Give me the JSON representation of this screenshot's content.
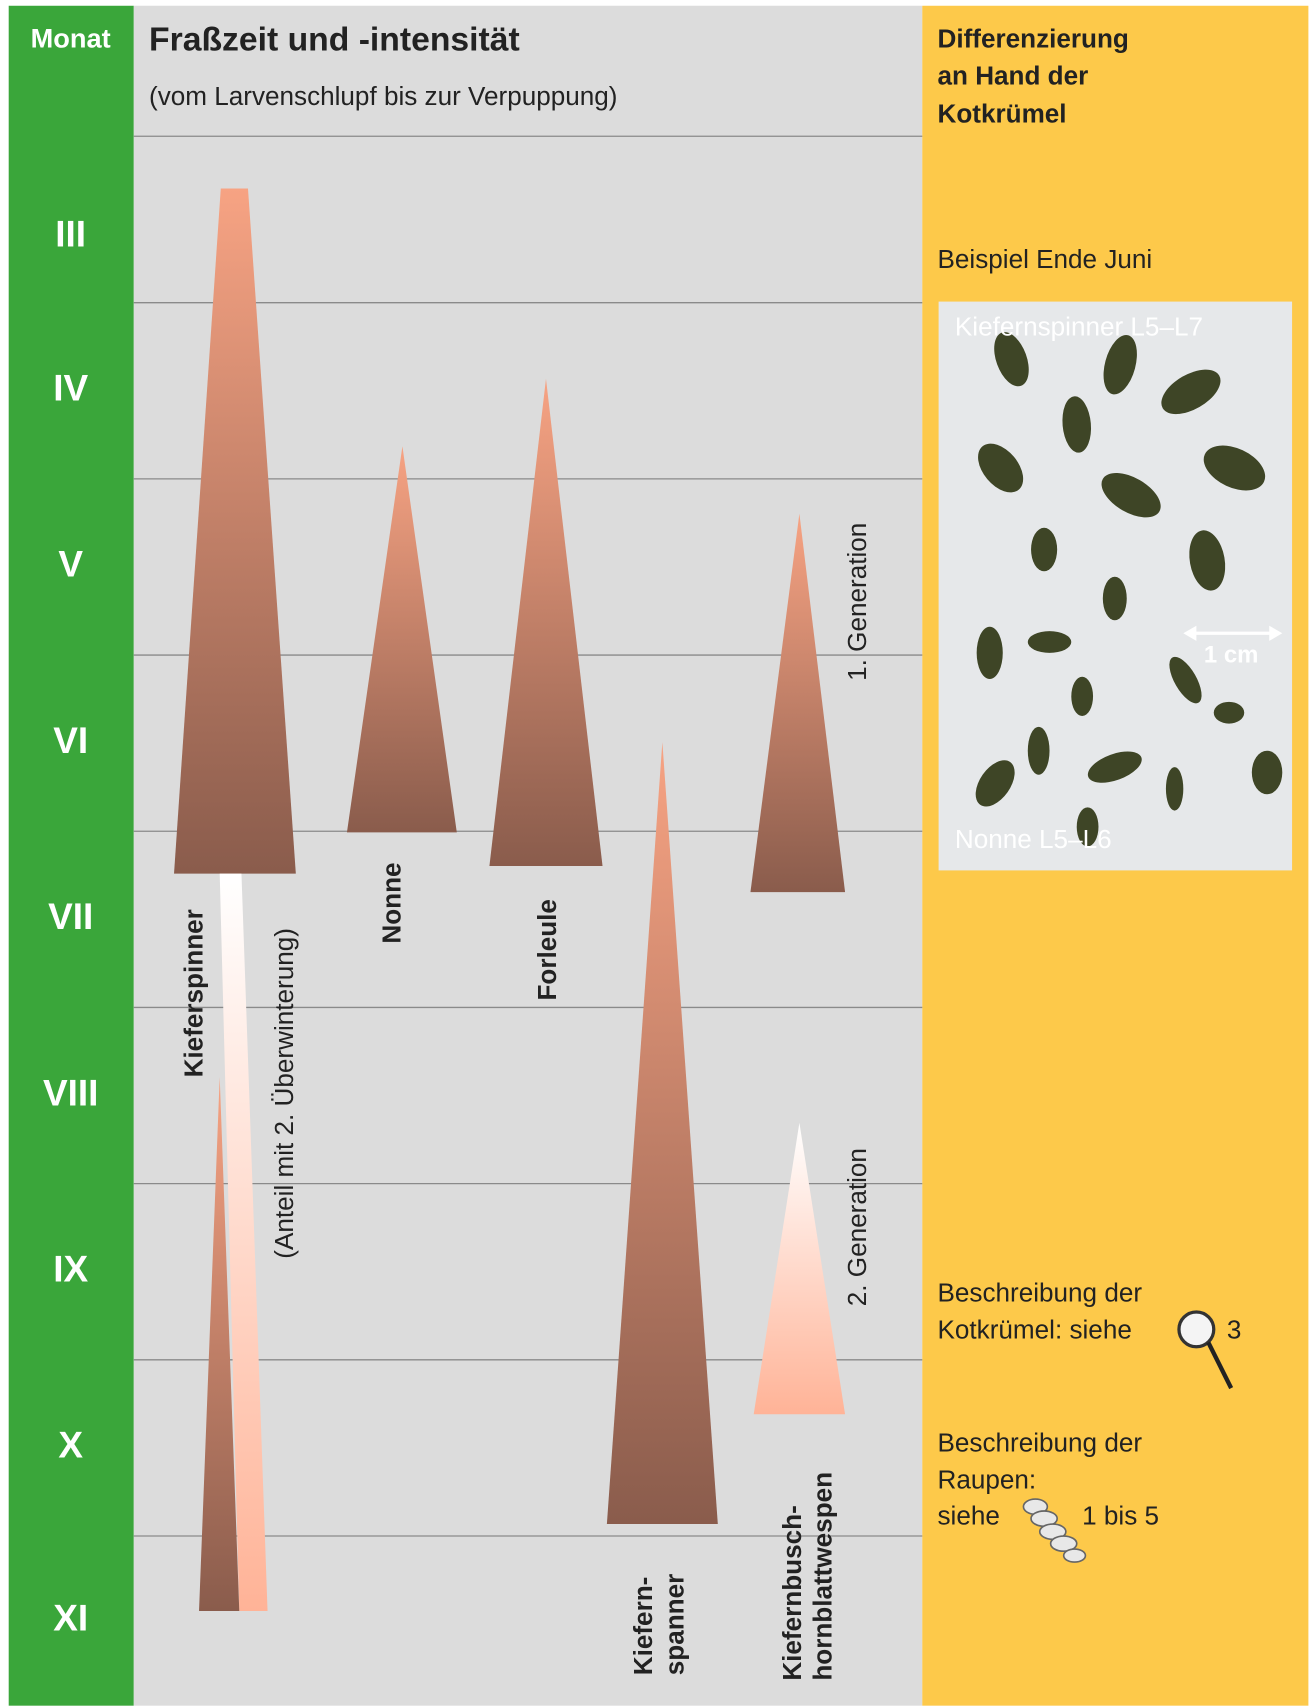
{
  "months_header": "Monat",
  "months": [
    "III",
    "IV",
    "V",
    "VI",
    "VII",
    "VIII",
    "IX",
    "X",
    "XI"
  ],
  "title": "Fraßzeit und -intensität",
  "subtitle": "(vom Larvenschlupf bis zur Verpuppung)",
  "species": {
    "kieferspinner": "Kieferspinner",
    "overwinter": "(Anteil mit 2. Überwinterung)",
    "nonne": "Nonne",
    "forleule": "Forleule",
    "spanner": [
      "Kiefern-",
      "spanner"
    ],
    "wespen": [
      "Kiefernbusch-",
      "hornblattwespen"
    ],
    "gen1": "1. Generation",
    "gen2": "2. Generation"
  },
  "side": {
    "title": [
      "Differenzierung",
      "an Hand der",
      "Kotkrümel"
    ],
    "example": "Beispiel Ende Juni",
    "photo_top": "Kiefernspinner L5–L7",
    "photo_bottom": "Nonne L5–L6",
    "scale": "1 cm",
    "desc1": [
      "Beschreibung der",
      "Kotkrümel: siehe"
    ],
    "desc1_ref": "3",
    "desc2": [
      "Beschreibung der",
      "Raupen:",
      "siehe"
    ],
    "desc2_ref": "1 bis 5"
  }
}
